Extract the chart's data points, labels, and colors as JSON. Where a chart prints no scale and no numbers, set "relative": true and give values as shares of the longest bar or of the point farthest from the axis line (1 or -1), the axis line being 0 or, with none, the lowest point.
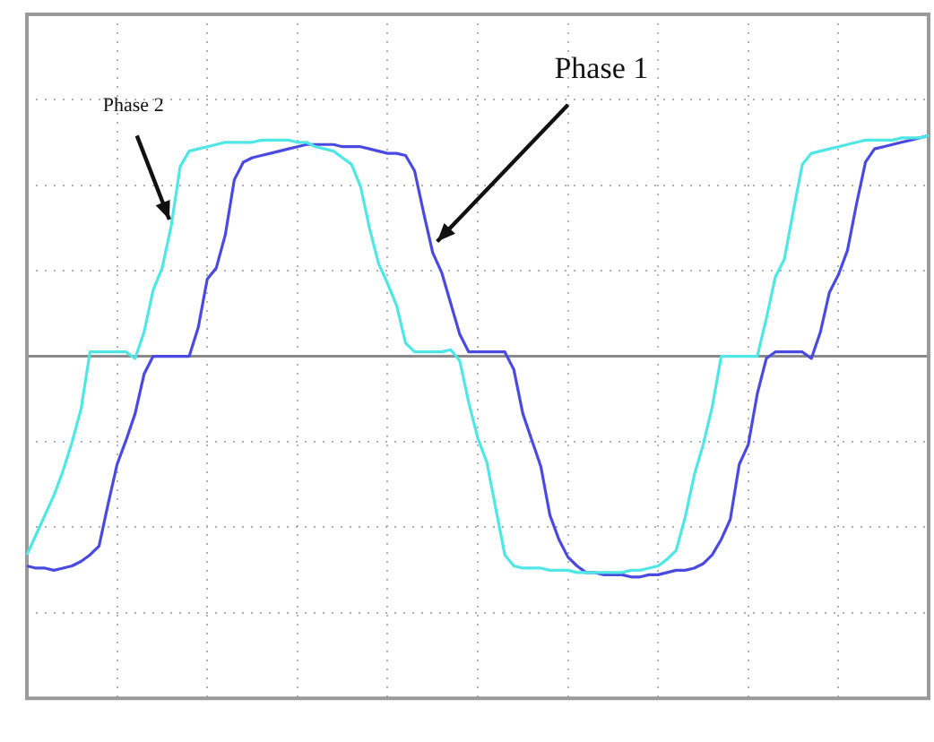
{
  "chart_data": {
    "type": "line",
    "relative": true,
    "grid": true,
    "legend": false,
    "marker": "none",
    "categories": [
      null,
      null,
      null,
      null,
      null,
      null,
      null,
      null,
      null,
      null,
      null,
      null,
      null,
      null,
      null,
      null,
      null,
      null,
      null,
      null,
      null,
      null,
      null,
      null,
      null,
      null,
      null,
      null,
      null,
      null,
      null,
      null,
      null,
      null,
      null,
      null,
      null,
      null,
      null,
      null,
      null,
      null,
      null,
      null,
      null,
      null,
      null,
      null,
      null,
      null,
      null,
      null,
      null,
      null,
      null,
      null,
      null,
      null,
      null,
      null,
      null,
      null,
      null,
      null,
      null,
      null,
      null,
      null,
      null,
      null,
      null,
      null,
      null,
      null,
      null,
      null,
      null,
      null,
      null,
      null,
      null,
      null,
      null,
      null,
      null,
      null,
      null,
      null,
      null,
      null,
      null,
      null,
      null,
      null,
      null,
      null,
      null,
      null,
      null,
      null,
      null
    ],
    "series": [
      {
        "name": "Phase 2",
        "color": "#4fe6e6",
        "values": [
          -0.9,
          -0.81,
          -0.72,
          -0.63,
          -0.52,
          -0.39,
          -0.24,
          0.02,
          0.02,
          0.02,
          0.02,
          0.02,
          -0.01,
          0.11,
          0.3,
          0.4,
          0.59,
          0.86,
          0.93,
          0.94,
          0.95,
          0.96,
          0.97,
          0.97,
          0.97,
          0.97,
          0.98,
          0.98,
          0.98,
          0.98,
          0.97,
          0.97,
          0.95,
          0.94,
          0.93,
          0.9,
          0.87,
          0.77,
          0.58,
          0.42,
          0.33,
          0.23,
          0.06,
          0.02,
          0.02,
          0.02,
          0.02,
          0.03,
          -0.02,
          -0.21,
          -0.37,
          -0.48,
          -0.69,
          -0.9,
          -0.95,
          -0.96,
          -0.96,
          -0.96,
          -0.97,
          -0.97,
          -0.97,
          -0.98,
          -0.98,
          -0.98,
          -0.98,
          -0.98,
          -0.98,
          -0.97,
          -0.97,
          -0.96,
          -0.95,
          -0.92,
          -0.88,
          -0.73,
          -0.54,
          -0.4,
          -0.23,
          0,
          0,
          0,
          0,
          0,
          0.17,
          0.36,
          0.44,
          0.66,
          0.87,
          0.92,
          0.93,
          0.94,
          0.95,
          0.96,
          0.97,
          0.98,
          0.98,
          0.98,
          0.98,
          0.99,
          0.99,
          0.99,
          1.0
        ]
      },
      {
        "name": "Phase 1",
        "color": "#4a4ae0",
        "values": [
          -0.95,
          -0.96,
          -0.96,
          -0.97,
          -0.96,
          -0.95,
          -0.93,
          -0.9,
          -0.86,
          -0.67,
          -0.49,
          -0.38,
          -0.26,
          -0.08,
          0,
          0,
          0,
          0,
          0,
          0.13,
          0.35,
          0.4,
          0.55,
          0.8,
          0.88,
          0.9,
          0.91,
          0.92,
          0.93,
          0.94,
          0.95,
          0.96,
          0.96,
          0.96,
          0.96,
          0.95,
          0.95,
          0.95,
          0.94,
          0.93,
          0.92,
          0.92,
          0.91,
          0.84,
          0.65,
          0.47,
          0.38,
          0.24,
          0.1,
          0.02,
          0.02,
          0.02,
          0.02,
          0.02,
          -0.06,
          -0.26,
          -0.38,
          -0.5,
          -0.72,
          -0.83,
          -0.91,
          -0.95,
          -0.98,
          -0.98,
          -0.99,
          -0.99,
          -0.99,
          -1.0,
          -1.0,
          -0.99,
          -0.99,
          -0.98,
          -0.97,
          -0.97,
          -0.96,
          -0.94,
          -0.9,
          -0.83,
          -0.74,
          -0.49,
          -0.4,
          -0.17,
          -0.01,
          0.02,
          0.02,
          0.02,
          0.02,
          -0.01,
          0.11,
          0.29,
          0.37,
          0.48,
          0.69,
          0.88,
          0.94,
          0.95,
          0.96,
          0.97,
          0.98,
          0.99,
          1.0
        ]
      }
    ]
  }
}
